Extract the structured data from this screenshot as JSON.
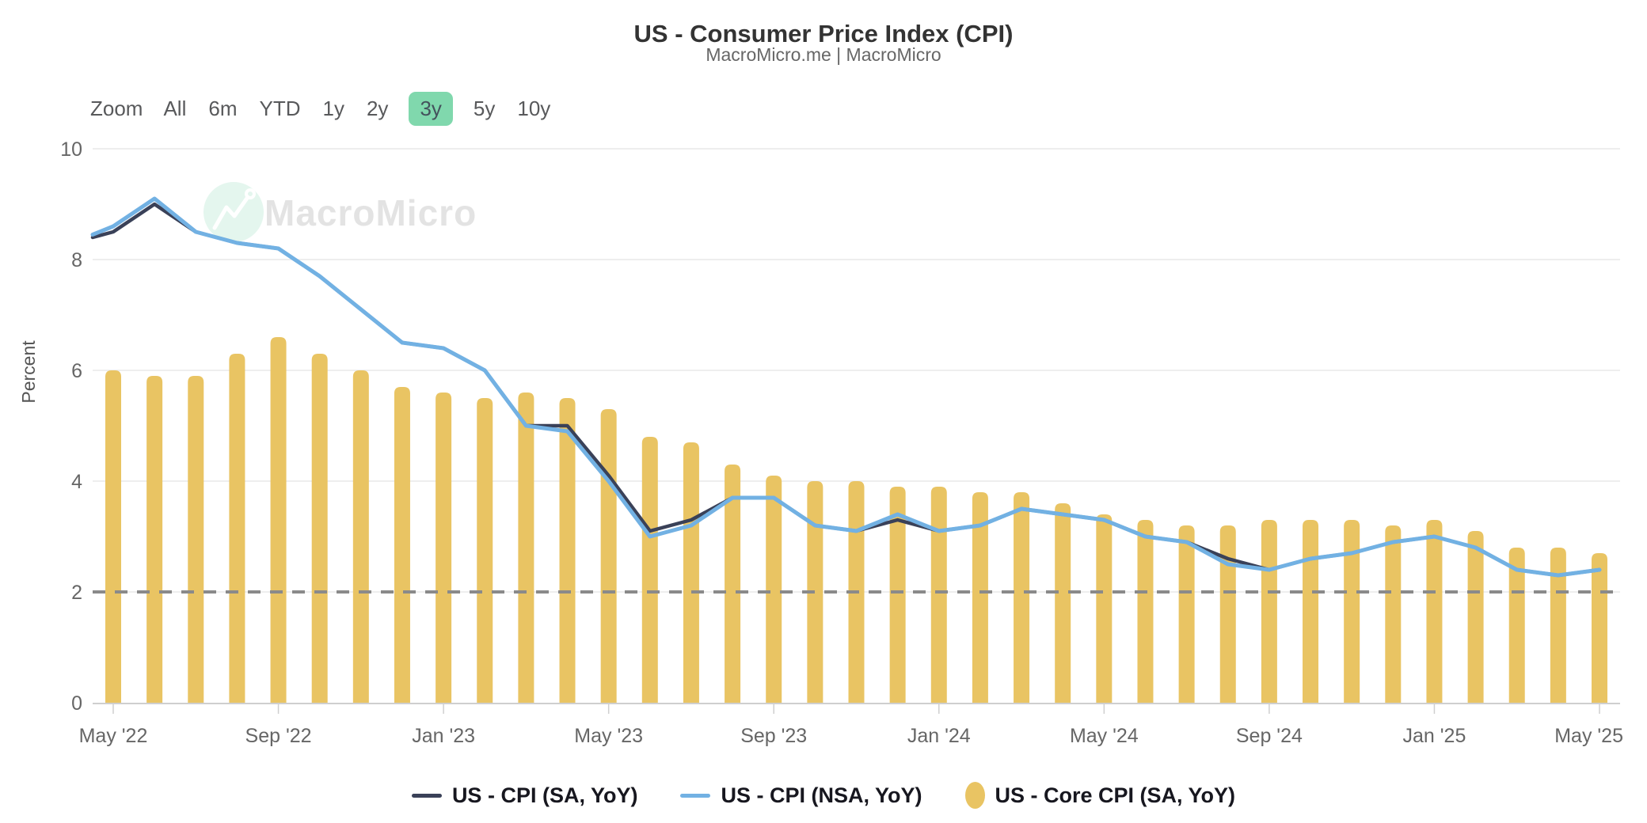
{
  "toolbar": {
    "zoom_label": "Zoom",
    "ranges": [
      "All",
      "6m",
      "YTD",
      "1y",
      "2y",
      "3y",
      "5y",
      "10y"
    ],
    "active": "3y",
    "active_bg": "#80d8ad"
  },
  "chart_data": {
    "type": "combo: line + bar",
    "title": "US - Consumer Price Index (CPI)",
    "subtitle": "MacroMicro.me | MacroMicro",
    "watermark": "MacroMicro",
    "ylabel": "Percent",
    "ylim": [
      0,
      10
    ],
    "yticks": [
      0,
      2,
      4,
      6,
      8,
      10
    ],
    "grid": "horizontal",
    "legend_position": "bottom-center",
    "reference_line": {
      "value": 2,
      "style": "dashed",
      "color": "#8a8a8a"
    },
    "categories": [
      "May '22",
      "Jun '22",
      "Jul '22",
      "Aug '22",
      "Sep '22",
      "Oct '22",
      "Nov '22",
      "Dec '22",
      "Jan '23",
      "Feb '23",
      "Mar '23",
      "Apr '23",
      "May '23",
      "Jun '23",
      "Jul '23",
      "Aug '23",
      "Sep '23",
      "Oct '23",
      "Nov '23",
      "Dec '23",
      "Jan '24",
      "Feb '24",
      "Mar '24",
      "Apr '24",
      "May '24",
      "Jun '24",
      "Jul '24",
      "Aug '24",
      "Sep '24",
      "Oct '24",
      "Nov '24",
      "Dec '24",
      "Jan '25",
      "Feb '25",
      "Mar '25",
      "Apr '25",
      "May '25"
    ],
    "x_tick_labels": [
      "May '22",
      "Sep '22",
      "Jan '23",
      "May '23",
      "Sep '23",
      "Jan '24",
      "May '24",
      "Sep '24",
      "Jan '25",
      "May '25"
    ],
    "series": [
      {
        "name": "US - CPI (SA, YoY)",
        "type": "line",
        "color": "#3a4158",
        "lead_in_apr_2022": 8.3,
        "values": [
          8.5,
          9.0,
          8.5,
          8.3,
          8.2,
          7.7,
          7.1,
          6.5,
          6.4,
          6.0,
          5.0,
          5.0,
          4.1,
          3.1,
          3.3,
          3.7,
          3.7,
          3.2,
          3.1,
          3.3,
          3.1,
          3.2,
          3.5,
          3.4,
          3.3,
          3.0,
          2.9,
          2.6,
          2.4,
          2.6,
          2.7,
          2.9,
          3.0,
          2.8,
          2.4,
          2.3,
          2.4
        ]
      },
      {
        "name": "US - CPI (NSA, YoY)",
        "type": "line",
        "color": "#72b1e3",
        "lead_in_apr_2022": 8.3,
        "values": [
          8.6,
          9.1,
          8.5,
          8.3,
          8.2,
          7.7,
          7.1,
          6.5,
          6.4,
          6.0,
          5.0,
          4.9,
          4.0,
          3.0,
          3.2,
          3.7,
          3.7,
          3.2,
          3.1,
          3.4,
          3.1,
          3.2,
          3.5,
          3.4,
          3.3,
          3.0,
          2.9,
          2.5,
          2.4,
          2.6,
          2.7,
          2.9,
          3.0,
          2.8,
          2.4,
          2.3,
          2.4
        ]
      },
      {
        "name": "US - Core CPI (SA, YoY)",
        "type": "bar",
        "color": "#e9c463",
        "values": [
          6.0,
          5.9,
          5.9,
          6.3,
          6.6,
          6.3,
          6.0,
          5.7,
          5.6,
          5.5,
          5.6,
          5.5,
          5.3,
          4.8,
          4.7,
          4.3,
          4.1,
          4.0,
          4.0,
          3.9,
          3.9,
          3.8,
          3.8,
          3.6,
          3.4,
          3.3,
          3.2,
          3.2,
          3.3,
          3.3,
          3.3,
          3.2,
          3.3,
          3.1,
          2.8,
          2.8,
          2.7
        ]
      }
    ]
  }
}
